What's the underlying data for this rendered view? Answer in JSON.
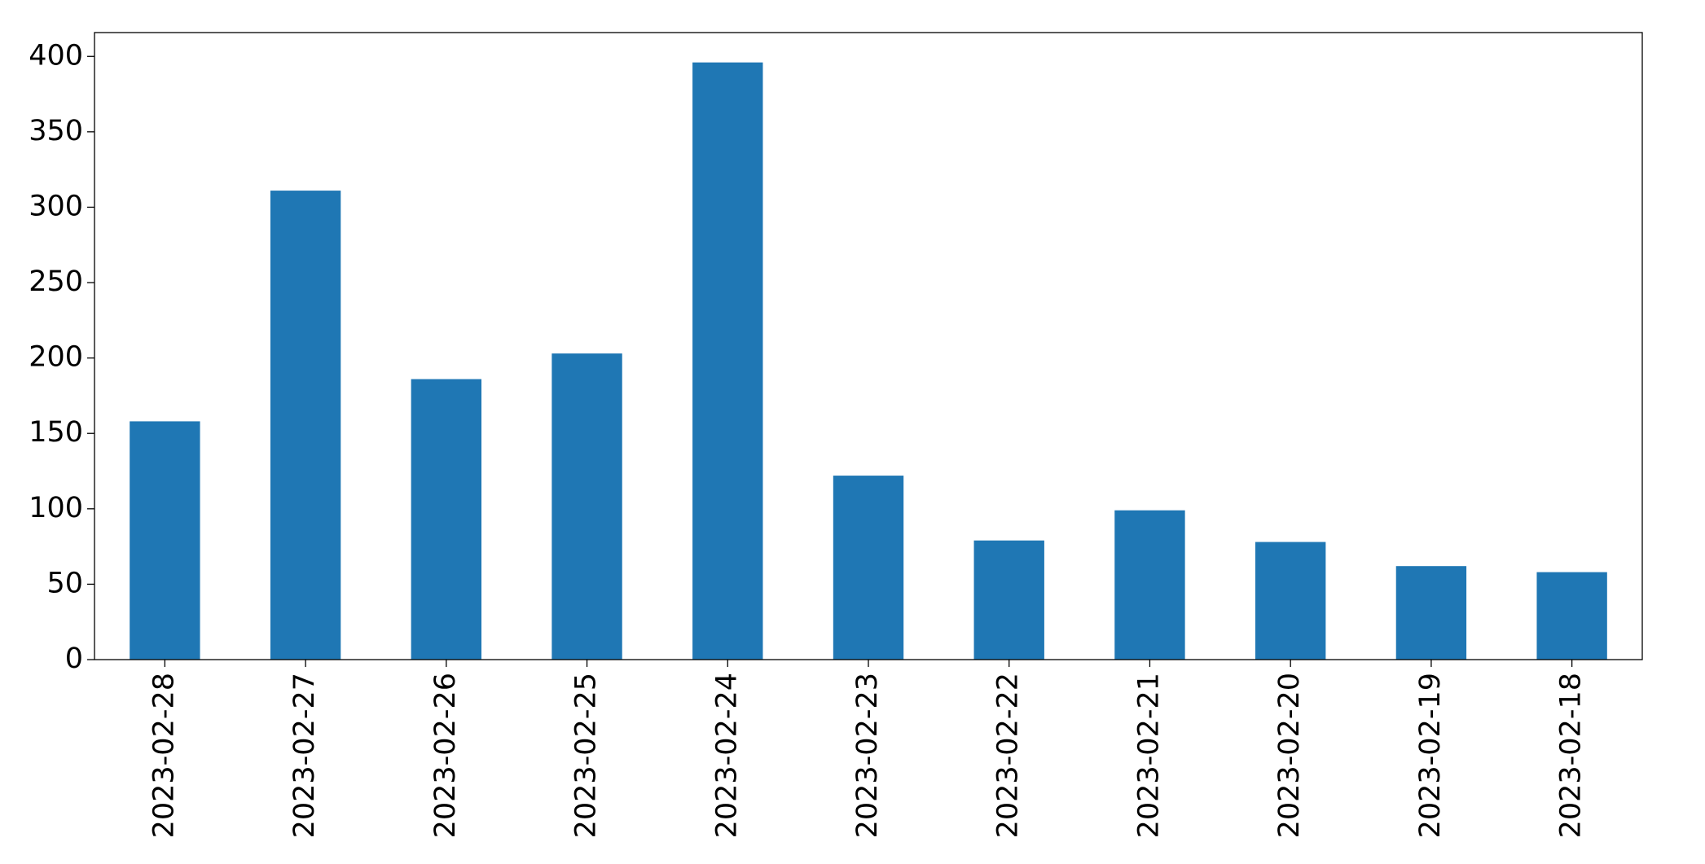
{
  "chart_data": {
    "type": "bar",
    "categories": [
      "2023-02-28",
      "2023-02-27",
      "2023-02-26",
      "2023-02-25",
      "2023-02-24",
      "2023-02-23",
      "2023-02-22",
      "2023-02-21",
      "2023-02-20",
      "2023-02-19",
      "2023-02-18"
    ],
    "values": [
      158,
      311,
      186,
      203,
      396,
      122,
      79,
      99,
      78,
      62,
      58
    ],
    "color": "#1f77b4",
    "ylim": [
      0,
      415.8
    ],
    "yticks": [
      0,
      50,
      100,
      150,
      200,
      250,
      300,
      350,
      400
    ],
    "grid": false
  }
}
